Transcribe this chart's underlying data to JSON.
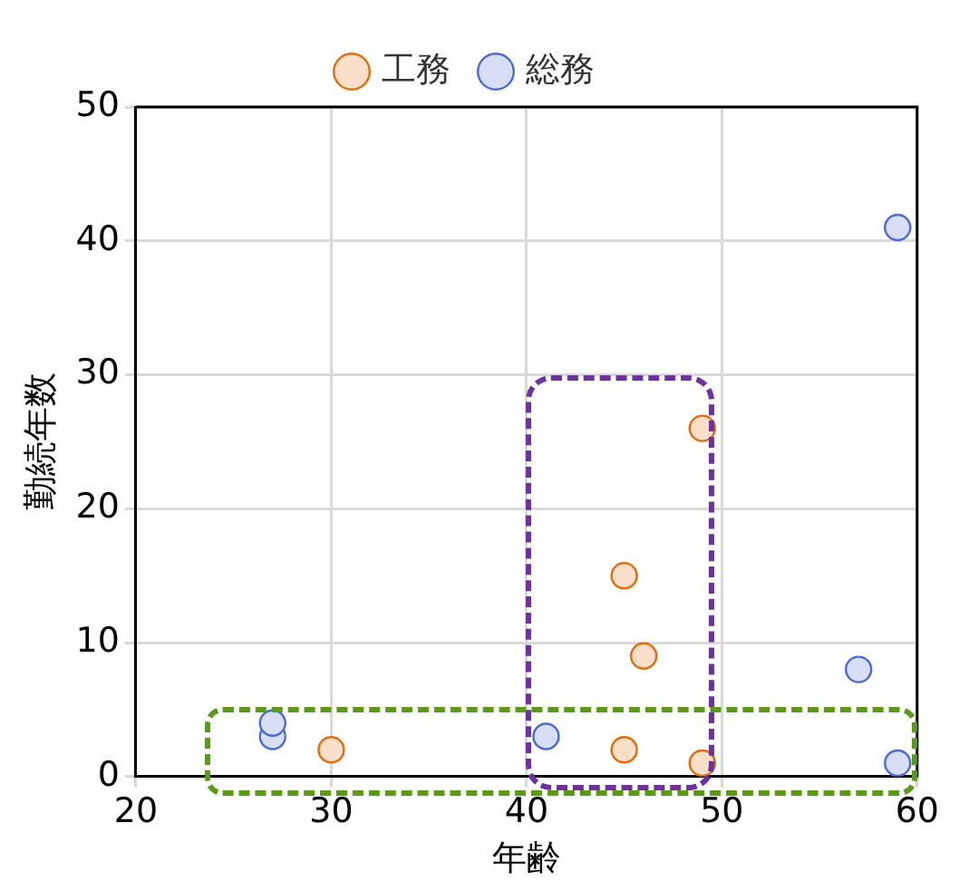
{
  "chart_data": {
    "type": "scatter",
    "xlabel": "年齢",
    "ylabel": "勤続年数",
    "xlim": [
      20,
      60
    ],
    "xticks": [
      20,
      30,
      40,
      50,
      60
    ],
    "ylim": [
      0,
      50
    ],
    "yticks": [
      0,
      10,
      20,
      30,
      40,
      50
    ],
    "grid": true,
    "legend": "top",
    "marker": "circle",
    "series": [
      {
        "name": "工務",
        "color": "#e36c0a",
        "x": [
          30,
          45,
          46,
          49,
          45,
          49
        ],
        "values": [
          2,
          15,
          9,
          26,
          2,
          1
        ]
      },
      {
        "name": "総務",
        "color": "#4a6bd6",
        "x": [
          27,
          27,
          41,
          57,
          59,
          59
        ],
        "values": [
          3,
          4,
          3,
          8,
          41,
          1
        ]
      }
    ]
  }
}
